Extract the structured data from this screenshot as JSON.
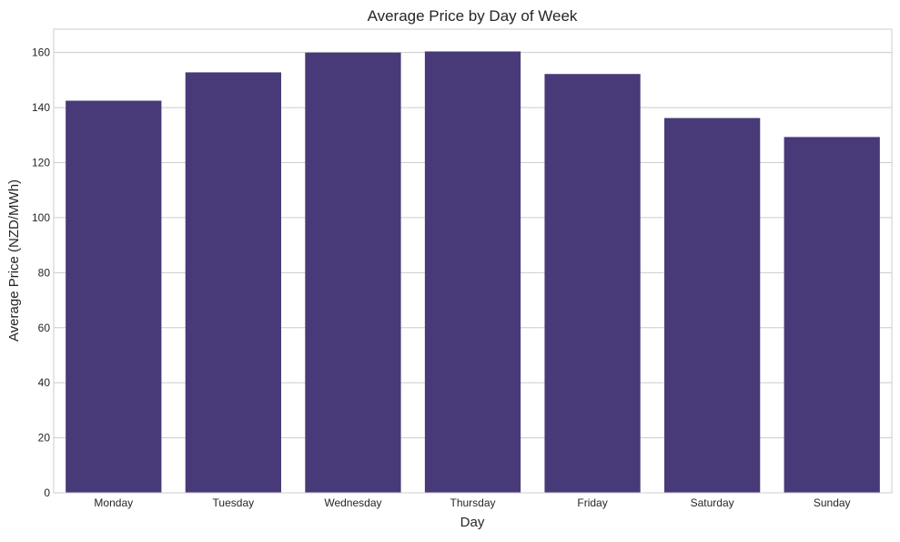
{
  "chart_data": {
    "type": "bar",
    "title": "Average Price by Day of Week",
    "xlabel": "Day",
    "ylabel": "Average Price (NZD/MWh)",
    "categories": [
      "Monday",
      "Tuesday",
      "Wednesday",
      "Thursday",
      "Friday",
      "Saturday",
      "Sunday"
    ],
    "values": [
      142.5,
      152.8,
      160.0,
      160.4,
      152.2,
      136.2,
      129.3
    ],
    "ylim": [
      0,
      168.5
    ],
    "yticks": [
      0,
      20,
      40,
      60,
      80,
      100,
      120,
      140,
      160
    ],
    "grid": true,
    "legend": "none",
    "colors": {
      "bar": "#483a78",
      "grid": "#cccccc",
      "axes_edge": "#cccccc",
      "text": "#262626",
      "background": "#ffffff"
    }
  }
}
